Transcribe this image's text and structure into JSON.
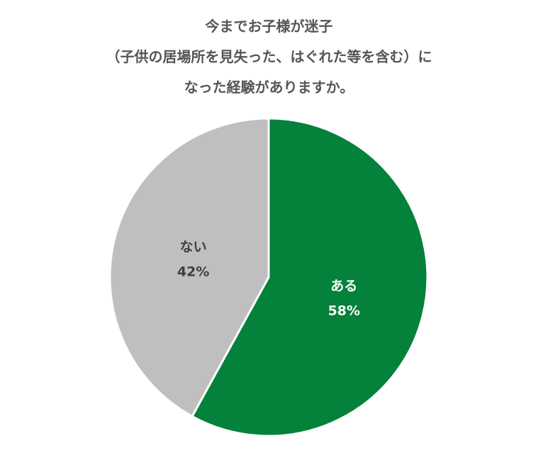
{
  "chart_data": {
    "type": "pie",
    "title_lines": [
      "今までお子様が迷子",
      "（子供の居場所を見失った、はぐれた等を含む）に",
      "なった経験がありますか。"
    ],
    "slices": [
      {
        "label": "ある",
        "value": 58,
        "value_label": "58%",
        "color": "#04813b",
        "text_color": "#ffffff"
      },
      {
        "label": "ない",
        "value": 42,
        "value_label": "42%",
        "color": "#bfbfbf",
        "text_color": "#404040"
      }
    ]
  }
}
